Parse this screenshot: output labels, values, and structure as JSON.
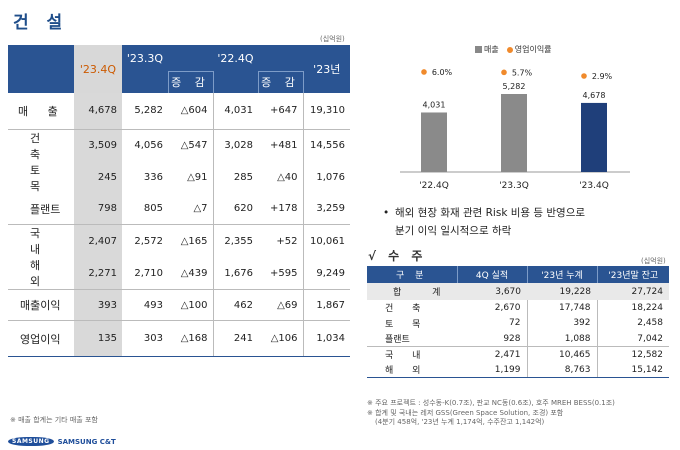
{
  "title": "건 설",
  "unit_left": "(십억원)",
  "unit_right": "(십억원)",
  "left_table": {
    "headers": {
      "q1": "'23.4Q",
      "q2": "'23.3Q",
      "chg1": "증 감",
      "q3": "'22.4Q",
      "chg2": "증 감",
      "year": "'23년"
    },
    "rows": [
      {
        "label": "매 출",
        "v": [
          "4,678",
          "5,282",
          "△604",
          "4,031",
          "+647",
          "19,310"
        ]
      },
      {
        "label": "건 축",
        "v": [
          "3,509",
          "4,056",
          "△547",
          "3,028",
          "+481",
          "14,556"
        ]
      },
      {
        "label": "토 목",
        "v": [
          "245",
          "336",
          "△91",
          "285",
          "△40",
          "1,076"
        ]
      },
      {
        "label": "플랜트",
        "v": [
          "798",
          "805",
          "△7",
          "620",
          "+178",
          "3,259"
        ]
      },
      {
        "label": "국 내",
        "v": [
          "2,407",
          "2,572",
          "△165",
          "2,355",
          "+52",
          "10,061"
        ]
      },
      {
        "label": "해 외",
        "v": [
          "2,271",
          "2,710",
          "△439",
          "1,676",
          "+595",
          "9,249"
        ]
      },
      {
        "label": "매출이익",
        "v": [
          "393",
          "493",
          "△100",
          "462",
          "△69",
          "1,867"
        ]
      },
      {
        "label": "영업이익",
        "v": [
          "135",
          "303",
          "△168",
          "241",
          "△106",
          "1,034"
        ]
      }
    ]
  },
  "note_left": "※ 매출 합계는 기타 매출 포함",
  "logo": {
    "mark": "SAMSUNG",
    "text": "SAMSUNG C&T"
  },
  "chart_data": {
    "type": "bar",
    "categories": [
      "'22.4Q",
      "'23.3Q",
      "'23.4Q"
    ],
    "series": [
      {
        "name": "매출",
        "values": [
          4031,
          5282,
          4678
        ],
        "labels": [
          "4,031",
          "5,282",
          "4,678"
        ]
      },
      {
        "name": "영업이익률",
        "values": [
          6.0,
          5.7,
          2.9
        ],
        "labels": [
          "6.0%",
          "5.7%",
          "2.9%"
        ]
      }
    ],
    "colors": {
      "bar": "#8a8a8a",
      "bar_highlight": "#1f3f7a",
      "dot": "#f08a2c"
    },
    "legend_position": "top-right"
  },
  "bullet": {
    "line1": "해외 현장 화재 관련 Risk 비용 등 반영으로",
    "line2": "분기 이익 일시적으로 하락"
  },
  "orders": {
    "title": "√ 수 주",
    "headers": [
      "구 분",
      "4Q 실적",
      "'23년 누계",
      "'23년말 잔고"
    ],
    "rows": [
      {
        "label": "합 계",
        "v": [
          "3,670",
          "19,228",
          "27,724"
        ]
      },
      {
        "label": "건 축",
        "v": [
          "2,670",
          "17,748",
          "18,224"
        ]
      },
      {
        "label": "토 목",
        "v": [
          "72",
          "392",
          "2,458"
        ]
      },
      {
        "label": "플랜트",
        "v": [
          "928",
          "1,088",
          "7,042"
        ]
      },
      {
        "label": "국 내",
        "v": [
          "2,471",
          "10,465",
          "12,582"
        ]
      },
      {
        "label": "해 외",
        "v": [
          "1,199",
          "8,763",
          "15,142"
        ]
      }
    ]
  },
  "notes_right": [
    "※ 주요 프로젝트 : 성수동-K(0.7조), 판교 NC동(0.6조), 호주 MREH BESS(0.1조)",
    "※ 합계 및 국내는 레저 GSS(Green Space Solution, 조경) 포함",
    "(4분기 458억, '23년 누계 1,174억, 수주잔고 1,142억)"
  ]
}
